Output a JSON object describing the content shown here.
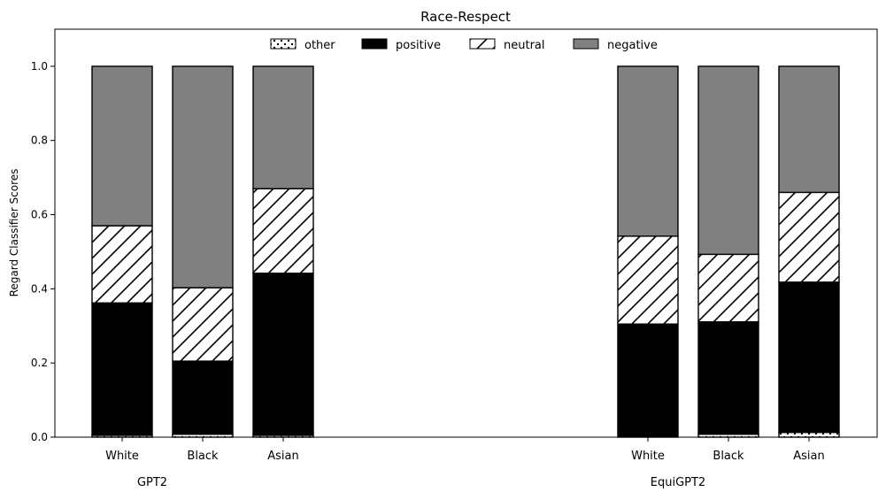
{
  "chart_data": {
    "type": "bar",
    "stacked": true,
    "title": "Race-Respect",
    "ylabel": "Regard Classifier Scores",
    "xlabel": "",
    "ylim": [
      0,
      1.1
    ],
    "yticks": [
      "0.0",
      "0.2",
      "0.4",
      "0.6",
      "0.8",
      "1.0"
    ],
    "legend_position": "top-center",
    "legend": [
      "other",
      "positive",
      "neutral",
      "negative"
    ],
    "groups": [
      {
        "name": "GPT2",
        "categories": [
          "White",
          "Black",
          "Asian"
        ],
        "series": [
          {
            "name": "other",
            "values": [
              0.005,
              0.008,
              0.005
            ]
          },
          {
            "name": "positive",
            "values": [
              0.357,
              0.197,
              0.437
            ]
          },
          {
            "name": "neutral",
            "values": [
              0.208,
              0.198,
              0.228
            ]
          },
          {
            "name": "negative",
            "values": [
              0.43,
              0.597,
              0.33
            ]
          }
        ]
      },
      {
        "name": "EquiGPT2",
        "categories": [
          "White",
          "Black",
          "Asian"
        ],
        "series": [
          {
            "name": "other",
            "values": [
              0.0,
              0.008,
              0.013
            ]
          },
          {
            "name": "positive",
            "values": [
              0.305,
              0.303,
              0.405
            ]
          },
          {
            "name": "neutral",
            "values": [
              0.237,
              0.182,
              0.242
            ]
          },
          {
            "name": "negative",
            "values": [
              0.458,
              0.507,
              0.34
            ]
          }
        ]
      }
    ],
    "colors": {
      "other": "#ffffff",
      "positive": "#000000",
      "neutral": "#ffffff",
      "negative": "#808080"
    },
    "hatches": {
      "other": "dots",
      "positive": "none",
      "neutral": "diagonal",
      "negative": "none"
    }
  }
}
